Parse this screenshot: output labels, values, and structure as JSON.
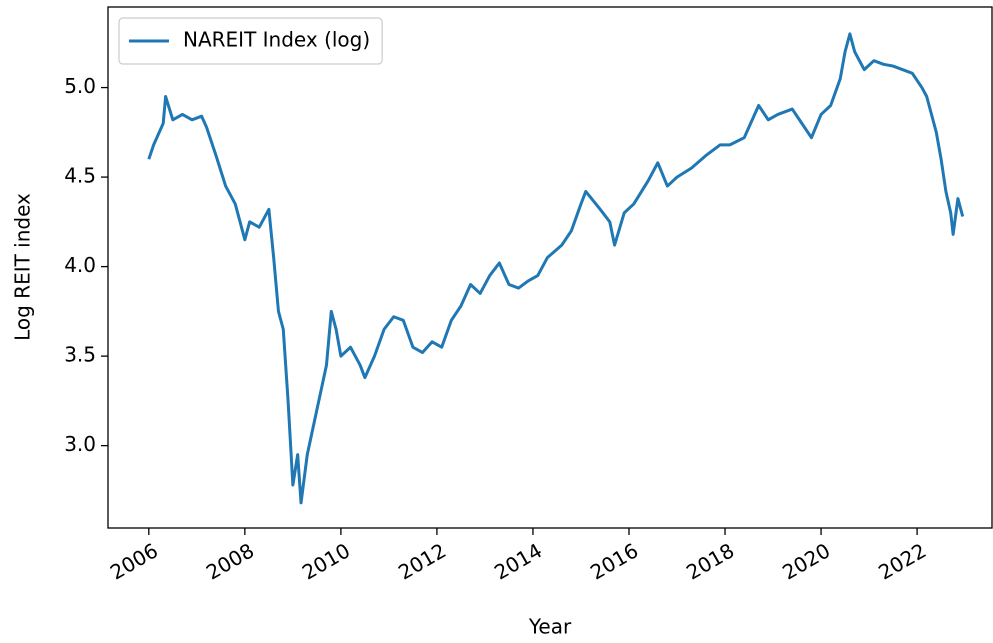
{
  "chart_data": {
    "type": "line",
    "x_label": "Year",
    "y_label": "Log REIT index",
    "x": [
      2006.0,
      2006.1,
      2006.3,
      2006.35,
      2006.5,
      2006.7,
      2006.9,
      2007.1,
      2007.2,
      2007.4,
      2007.6,
      2007.8,
      2008.0,
      2008.1,
      2008.3,
      2008.5,
      2008.6,
      2008.7,
      2008.8,
      2008.9,
      2009.0,
      2009.1,
      2009.17,
      2009.3,
      2009.5,
      2009.7,
      2009.8,
      2009.9,
      2010.0,
      2010.2,
      2010.4,
      2010.5,
      2010.7,
      2010.9,
      2011.1,
      2011.3,
      2011.5,
      2011.7,
      2011.9,
      2012.1,
      2012.3,
      2012.5,
      2012.7,
      2012.9,
      2013.1,
      2013.3,
      2013.5,
      2013.7,
      2013.9,
      2014.1,
      2014.3,
      2014.6,
      2014.8,
      2015.0,
      2015.1,
      2015.4,
      2015.6,
      2015.7,
      2015.9,
      2016.1,
      2016.4,
      2016.6,
      2016.8,
      2017.0,
      2017.3,
      2017.6,
      2017.9,
      2018.1,
      2018.4,
      2018.7,
      2018.9,
      2019.1,
      2019.4,
      2019.6,
      2019.8,
      2020.0,
      2020.2,
      2020.4,
      2020.5,
      2020.6,
      2020.7,
      2020.9,
      2021.1,
      2021.3,
      2021.5,
      2021.7,
      2021.9,
      2022.1,
      2022.2,
      2022.4,
      2022.5,
      2022.6,
      2022.7,
      2022.75,
      2022.85,
      2022.95
    ],
    "series": [
      {
        "name": "NAREIT Index (log)",
        "color": "#1f77b4",
        "values": [
          4.6,
          4.68,
          4.8,
          4.95,
          4.82,
          4.85,
          4.82,
          4.84,
          4.78,
          4.62,
          4.45,
          4.35,
          4.15,
          4.25,
          4.22,
          4.32,
          4.05,
          3.75,
          3.65,
          3.25,
          2.78,
          2.95,
          2.68,
          2.95,
          3.2,
          3.45,
          3.75,
          3.65,
          3.5,
          3.55,
          3.45,
          3.38,
          3.5,
          3.65,
          3.72,
          3.7,
          3.55,
          3.52,
          3.58,
          3.55,
          3.7,
          3.78,
          3.9,
          3.85,
          3.95,
          4.02,
          3.9,
          3.88,
          3.92,
          3.95,
          4.05,
          4.12,
          4.2,
          4.35,
          4.42,
          4.32,
          4.25,
          4.12,
          4.3,
          4.35,
          4.48,
          4.58,
          4.45,
          4.5,
          4.55,
          4.62,
          4.68,
          4.68,
          4.72,
          4.9,
          4.82,
          4.85,
          4.88,
          4.8,
          4.72,
          4.85,
          4.9,
          5.05,
          5.2,
          5.3,
          5.2,
          5.1,
          5.15,
          5.13,
          5.12,
          5.1,
          5.08,
          5.0,
          4.95,
          4.75,
          4.6,
          4.42,
          4.3,
          4.18,
          4.38,
          4.28
        ]
      }
    ],
    "xlim": [
      2005.15,
      2023.56
    ],
    "xticks": [
      2006,
      2008,
      2010,
      2012,
      2014,
      2016,
      2018,
      2020,
      2022
    ],
    "ylim": [
      2.54,
      5.45
    ],
    "yticks": [
      {
        "value": 3,
        "label": "3.0"
      },
      3.5,
      {
        "value": 4,
        "label": "4.0"
      },
      4.5,
      {
        "value": 5,
        "label": "5.0"
      }
    ],
    "grid": false,
    "legend": "upper left"
  }
}
